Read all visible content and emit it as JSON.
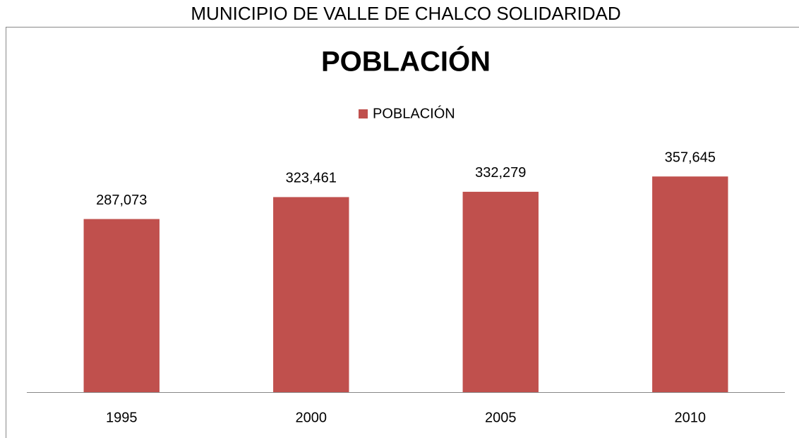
{
  "header": "MUNICIPIO DE VALLE DE CHALCO SOLIDARIDAD",
  "chart_data": {
    "type": "bar",
    "title": "POBLACIÓN",
    "categories": [
      "1995",
      "2000",
      "2005",
      "2010"
    ],
    "series": [
      {
        "name": "POBLACIÓN",
        "color": "#c0504d",
        "values": [
          287073,
          323461,
          332279,
          357645
        ],
        "value_labels": [
          "287,073",
          "323,461",
          "332,279",
          "357,645"
        ]
      }
    ],
    "ylim": [
      0,
      400000
    ],
    "legend": "top"
  }
}
